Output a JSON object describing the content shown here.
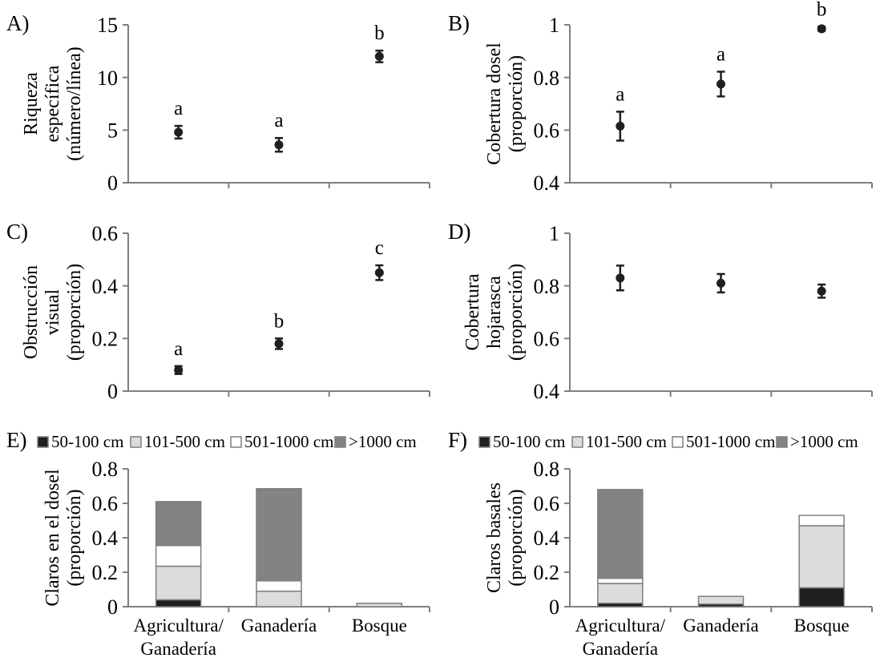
{
  "figure": {
    "background": "#ffffff",
    "colors": {
      "marker": "#1f1f1f",
      "axis": "#7f7f7f",
      "text": "#000000",
      "segment_border": "#7f7f7f",
      "segments": [
        "#1f1f1f",
        "#dcdcdc",
        "#ffffff",
        "#838383"
      ]
    },
    "x_categories": [
      {
        "name": "Agricultura/Ganadería",
        "lines": [
          "Agricultura/",
          "Ganadería"
        ]
      },
      {
        "name": "Ganadería",
        "lines": [
          "Ganadería"
        ]
      },
      {
        "name": "Bosque",
        "lines": [
          "Bosque"
        ]
      }
    ]
  },
  "chart_data": [
    {
      "id": "A",
      "panel_label": "A)",
      "type": "scatter",
      "ylabel_lines": [
        "Riqueza",
        "específica",
        "(número/línea)"
      ],
      "ylim": [
        0,
        15
      ],
      "ytick_values": [
        0,
        5,
        10,
        15
      ],
      "ytick_labels": [
        "0",
        "5",
        "10",
        "15"
      ],
      "categories": [
        "Agricultura/Ganadería",
        "Ganadería",
        "Bosque"
      ],
      "points": [
        {
          "y": 4.8,
          "err": 0.6,
          "letter": "a"
        },
        {
          "y": 3.6,
          "err": 0.65,
          "letter": "a"
        },
        {
          "y": 12.0,
          "err": 0.55,
          "letter": "b"
        }
      ],
      "show_x_labels": false
    },
    {
      "id": "B",
      "panel_label": "B)",
      "type": "scatter",
      "ylabel_lines": [
        "Cobertura dosel",
        "(proporción)"
      ],
      "ylim": [
        0.4,
        1
      ],
      "ytick_values": [
        0.4,
        0.6,
        0.8,
        1
      ],
      "ytick_labels": [
        "0.4",
        "0.6",
        "0.8",
        "1"
      ],
      "categories": [
        "Agricultura/Ganadería",
        "Ganadería",
        "Bosque"
      ],
      "points": [
        {
          "y": 0.615,
          "err": 0.055,
          "letter": "a"
        },
        {
          "y": 0.775,
          "err": 0.047,
          "letter": "a"
        },
        {
          "y": 0.985,
          "err": 0.008,
          "letter": "b"
        }
      ],
      "show_x_labels": false
    },
    {
      "id": "C",
      "panel_label": "C)",
      "type": "scatter",
      "ylabel_lines": [
        "Obstrucción",
        "visual",
        "(proporción)"
      ],
      "ylim": [
        0,
        0.6
      ],
      "ytick_values": [
        0,
        0.2,
        0.4,
        0.6
      ],
      "ytick_labels": [
        "0",
        "0.2",
        "0.4",
        "0.6"
      ],
      "categories": [
        "Agricultura/Ganadería",
        "Ganadería",
        "Bosque"
      ],
      "points": [
        {
          "y": 0.08,
          "err": 0.015,
          "letter": "a"
        },
        {
          "y": 0.18,
          "err": 0.02,
          "letter": "b"
        },
        {
          "y": 0.45,
          "err": 0.028,
          "letter": "c"
        }
      ],
      "show_x_labels": false
    },
    {
      "id": "D",
      "panel_label": "D)",
      "type": "scatter",
      "ylabel_lines": [
        "Cobertura",
        "hojarasca",
        "(proporción)"
      ],
      "ylim": [
        0.4,
        1
      ],
      "ytick_values": [
        0.4,
        0.6,
        0.8,
        1
      ],
      "ytick_labels": [
        "0.4",
        "0.6",
        "0.8",
        "1"
      ],
      "categories": [
        "Agricultura/Ganadería",
        "Ganadería",
        "Bosque"
      ],
      "points": [
        {
          "y": 0.83,
          "err": 0.047,
          "letter": ""
        },
        {
          "y": 0.81,
          "err": 0.035,
          "letter": ""
        },
        {
          "y": 0.78,
          "err": 0.025,
          "letter": ""
        }
      ],
      "show_x_labels": false
    },
    {
      "id": "E",
      "panel_label": "E)",
      "type": "stacked-bar",
      "ylabel_lines": [
        "Claros en el dosel",
        "(proporción)"
      ],
      "ylim": [
        0,
        0.8
      ],
      "ytick_values": [
        0,
        0.2,
        0.4,
        0.6,
        0.8
      ],
      "ytick_labels": [
        "0",
        "0.2",
        "0.4",
        "0.6",
        "0.8"
      ],
      "categories": [
        "Agricultura/Ganadería",
        "Ganadería",
        "Bosque"
      ],
      "legend": [
        "50-100 cm",
        "101-500 cm",
        "501-1000 cm",
        ">1000 cm"
      ],
      "series": [
        {
          "name": "50-100 cm",
          "values": [
            0.04,
            0,
            0
          ]
        },
        {
          "name": "101-500 cm",
          "values": [
            0.195,
            0.09,
            0.02
          ]
        },
        {
          "name": "501-1000 cm",
          "values": [
            0.12,
            0.06,
            0
          ]
        },
        {
          "name": ">1000 cm",
          "values": [
            0.255,
            0.535,
            0
          ]
        }
      ],
      "totals": [
        0.61,
        0.685,
        0.02
      ],
      "show_x_labels": true
    },
    {
      "id": "F",
      "panel_label": "F)",
      "type": "stacked-bar",
      "ylabel_lines": [
        "Claros basales",
        "(proporción)"
      ],
      "ylim": [
        0,
        0.8
      ],
      "ytick_values": [
        0,
        0.2,
        0.4,
        0.6,
        0.8
      ],
      "ytick_labels": [
        "0",
        "0.2",
        "0.4",
        "0.6",
        "0.8"
      ],
      "categories": [
        "Agricultura/Ganadería",
        "Ganadería",
        "Bosque"
      ],
      "legend": [
        "50-100 cm",
        "101-500 cm",
        "501-1000 cm",
        ">1000 cm"
      ],
      "series": [
        {
          "name": "50-100 cm",
          "values": [
            0.02,
            0.015,
            0.11
          ]
        },
        {
          "name": "101-500 cm",
          "values": [
            0.115,
            0.045,
            0.36
          ]
        },
        {
          "name": "501-1000 cm",
          "values": [
            0.03,
            0,
            0.06
          ]
        },
        {
          "name": ">1000 cm",
          "values": [
            0.515,
            0,
            0
          ]
        }
      ],
      "totals": [
        0.68,
        0.06,
        0.53
      ],
      "show_x_labels": true
    }
  ]
}
